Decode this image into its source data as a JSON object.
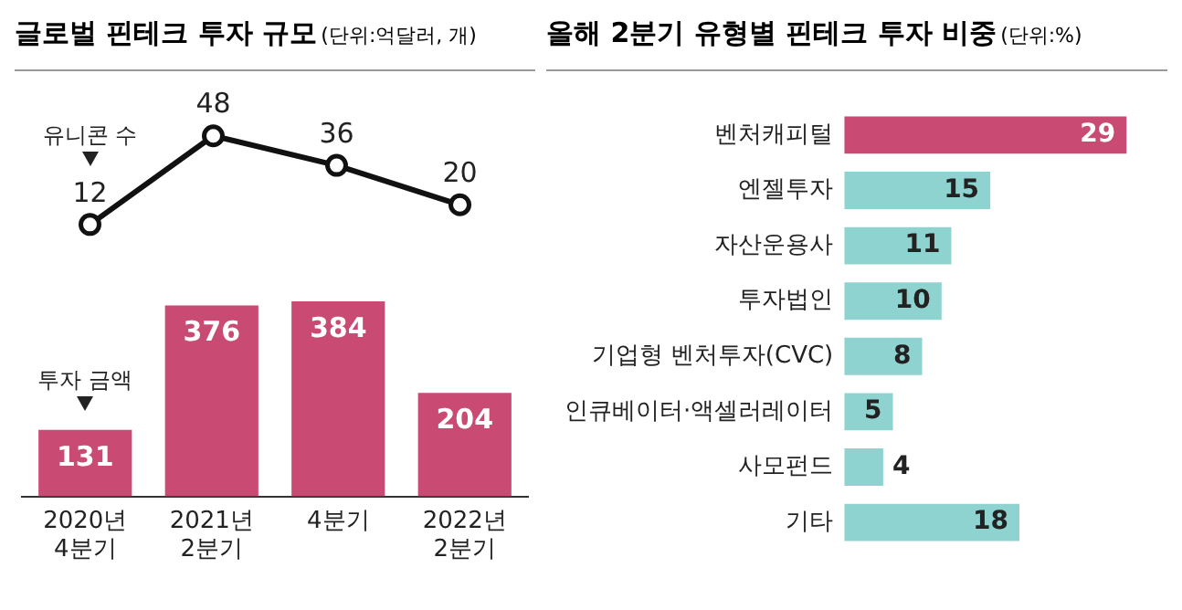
{
  "chart_data": [
    {
      "type": "line",
      "title": "글로벌 핀테크 투자 규모",
      "subtitle": "(단위:억달러, 개)",
      "categories": [
        null,
        null,
        null,
        null
      ],
      "series": [
        {
          "name": "유니콘 수",
          "color": "#111111",
          "values": [
            12,
            48,
            36,
            20
          ]
        }
      ],
      "marker": "circle",
      "data_labels": true,
      "legend": false,
      "tick_labels": false
    },
    {
      "type": "bar",
      "categories": [
        "2020년\n4분기",
        "2021년\n2분기",
        "4분기",
        "2022년\n2분기"
      ],
      "series": [
        {
          "name": "투자 금액",
          "color": "#c94a73",
          "values": [
            131,
            376,
            384,
            204
          ]
        }
      ],
      "data_labels": true,
      "legend": false,
      "tick_labels": "x"
    },
    {
      "type": "bar",
      "orientation": "horizontal",
      "title": "올해 2분기 유형별 핀테크 투자 비중",
      "subtitle": "(단위:%)",
      "categories": [
        "벤처캐피털",
        "엔젤투자",
        "자산운용사",
        "투자법인",
        "기업형 벤처투자(CVC)",
        "인큐베이터·액셀러레이터",
        "사모펀드",
        "기타"
      ],
      "values": [
        29,
        15,
        11,
        10,
        8,
        5,
        4,
        18
      ],
      "colors": [
        "#c94a73",
        "#8fd3d0",
        "#8fd3d0",
        "#8fd3d0",
        "#8fd3d0",
        "#8fd3d0",
        "#8fd3d0",
        "#8fd3d0"
      ],
      "data_labels": true,
      "legend": false,
      "tick_labels": "y"
    }
  ]
}
